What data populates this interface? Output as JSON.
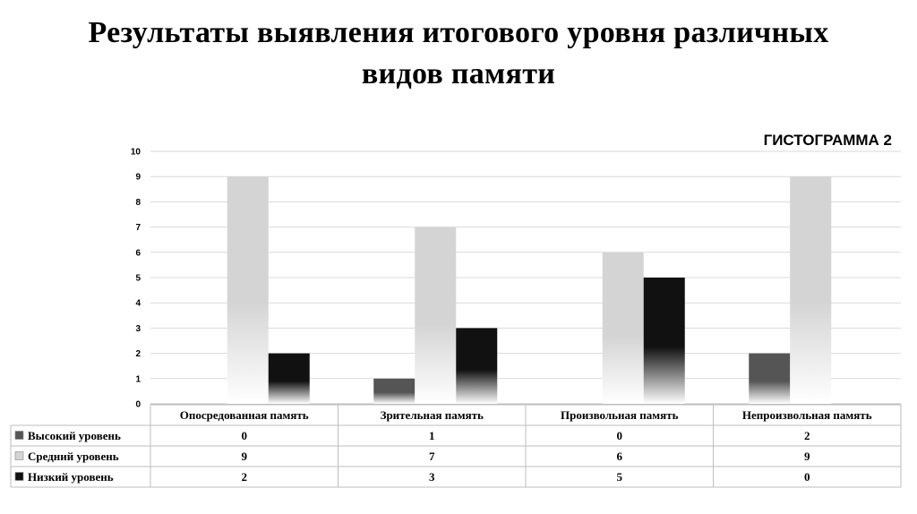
{
  "title_line1": "Результаты выявления итогового уровня различных",
  "title_line2": "видов памяти",
  "chart_data": {
    "type": "bar",
    "subtitle": "ГИСТОГРАММА 2",
    "categories": [
      "Опосредованная память",
      "Зрительная память",
      "Произвольная память",
      "Непроизвольная память"
    ],
    "series": [
      {
        "name": "Высокий уровень",
        "values": [
          0,
          1,
          0,
          2
        ],
        "color": "#555555"
      },
      {
        "name": "Средний уровень",
        "values": [
          9,
          7,
          6,
          9
        ],
        "color": "#d4d4d4"
      },
      {
        "name": "Низкий уровень",
        "values": [
          2,
          3,
          5,
          0
        ],
        "color": "#111111"
      }
    ],
    "ylim": [
      0,
      10
    ],
    "yticks": [
      "0",
      "1",
      "2",
      "3",
      "4",
      "5",
      "6",
      "7",
      "8",
      "9",
      "10"
    ],
    "grid": true,
    "legend": "data-table-below"
  }
}
